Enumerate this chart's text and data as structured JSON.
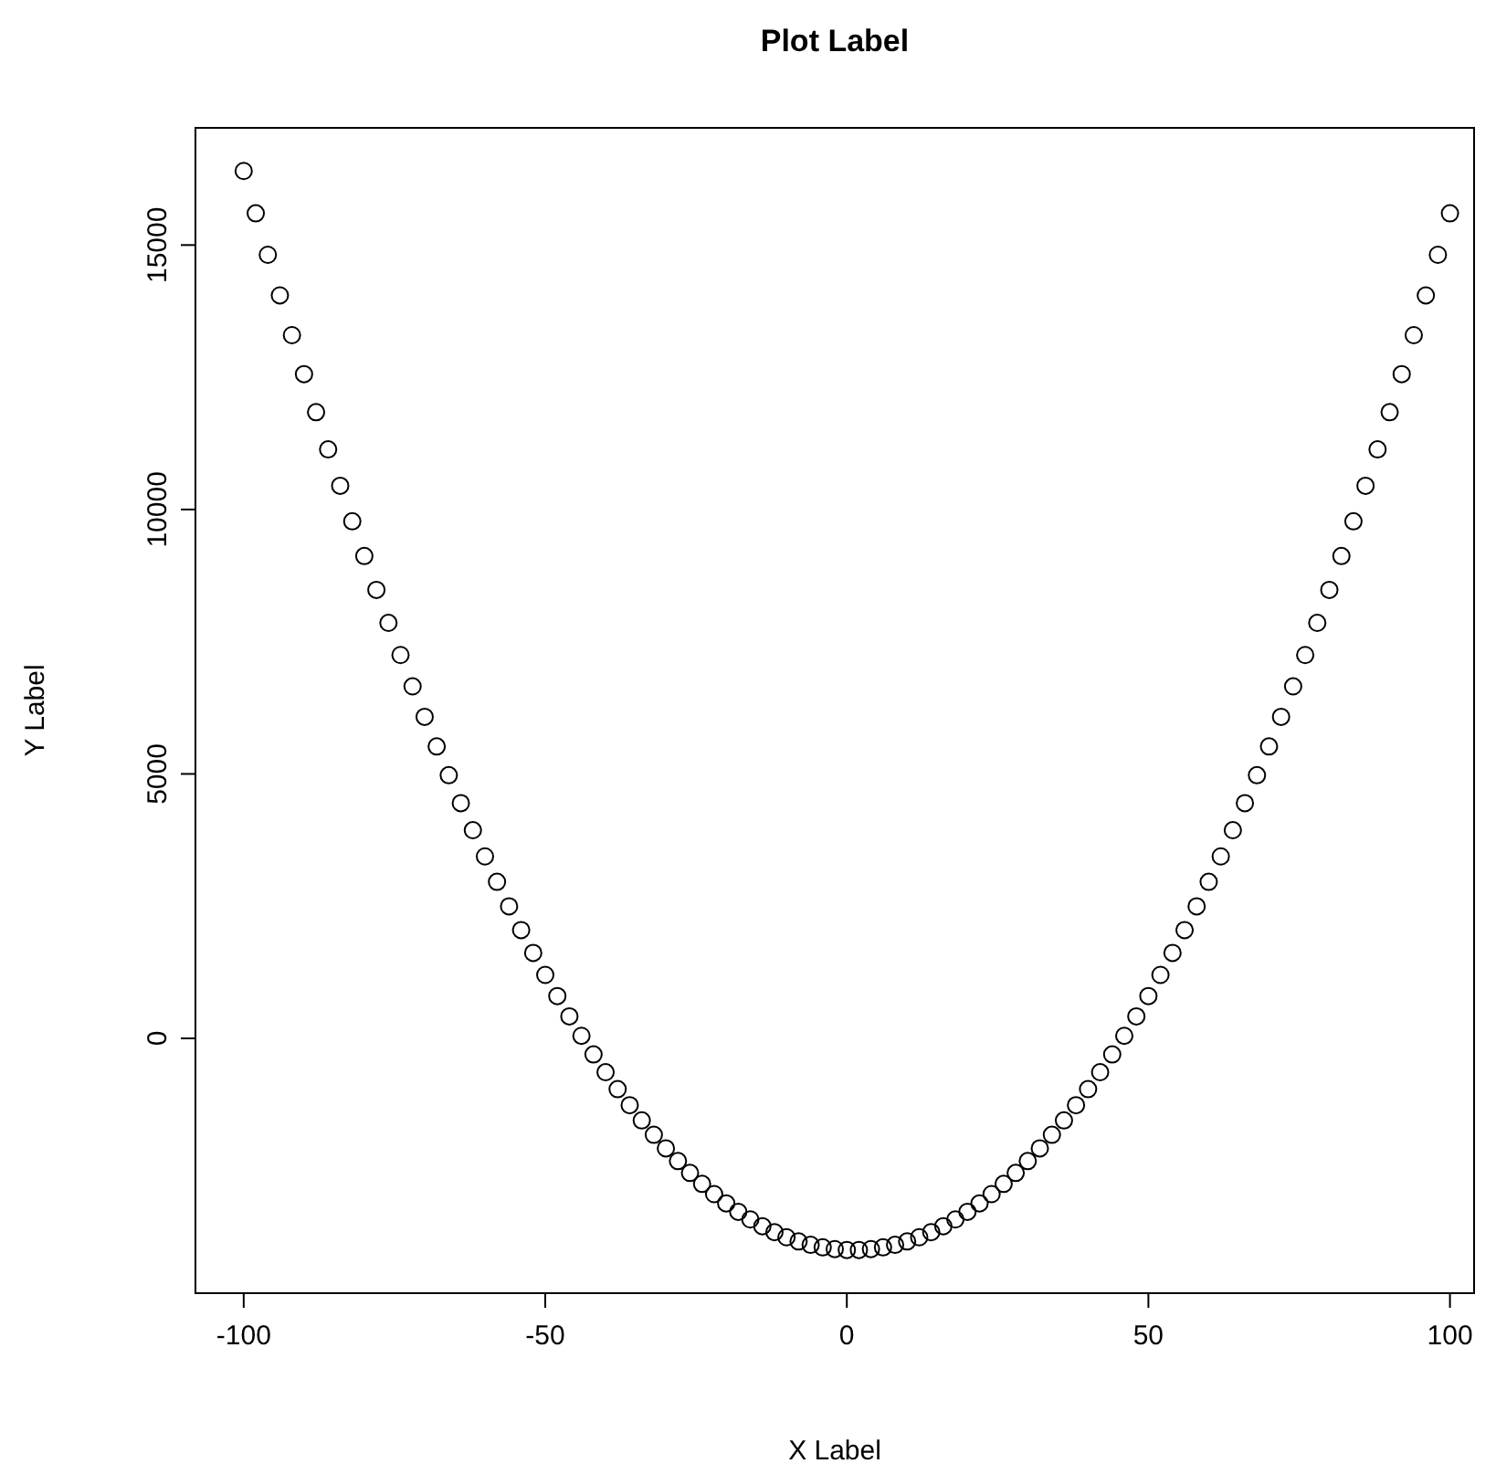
{
  "chart_data": {
    "type": "scatter",
    "title": "Plot Label",
    "xlabel": "X Label",
    "ylabel": "Y Label",
    "marker": "circle",
    "color": "#000000",
    "x": [
      -100,
      -98,
      -96,
      -94,
      -92,
      -90,
      -88,
      -86,
      -84,
      -82,
      -80,
      -78,
      -76,
      -74,
      -72,
      -70,
      -68,
      -66,
      -64,
      -62,
      -60,
      -58,
      -56,
      -54,
      -52,
      -50,
      -48,
      -46,
      -44,
      -42,
      -40,
      -38,
      -36,
      -34,
      -32,
      -30,
      -28,
      -26,
      -24,
      -22,
      -20,
      -18,
      -16,
      -14,
      -12,
      -10,
      -8,
      -6,
      -4,
      -2,
      0,
      2,
      4,
      6,
      8,
      10,
      12,
      14,
      16,
      18,
      20,
      22,
      24,
      26,
      28,
      30,
      32,
      34,
      36,
      38,
      40,
      42,
      44,
      46,
      48,
      50,
      52,
      54,
      56,
      58,
      60,
      62,
      64,
      66,
      68,
      70,
      72,
      74,
      76,
      78,
      80,
      82,
      84,
      86,
      88,
      90,
      92,
      94,
      96,
      98,
      100
    ],
    "values": [
      16400,
      15600,
      14816,
      14048,
      13296,
      12560,
      11840,
      11136,
      10448,
      9776,
      9120,
      8480,
      7856,
      7248,
      6656,
      6080,
      5520,
      4976,
      4448,
      3936,
      3440,
      2960,
      2496,
      2048,
      1616,
      1200,
      800,
      416,
      48,
      -304,
      -640,
      -960,
      -1264,
      -1552,
      -1824,
      -2080,
      -2320,
      -2544,
      -2752,
      -2944,
      -3120,
      -3280,
      -3424,
      -3552,
      -3664,
      -3760,
      -3840,
      -3904,
      -3952,
      -3984,
      -4000,
      -4000,
      -3984,
      -3952,
      -3904,
      -3840,
      -3760,
      -3664,
      -3552,
      -3424,
      -3280,
      -3120,
      -2944,
      -2752,
      -2544,
      -2320,
      -2080,
      -1824,
      -1552,
      -1264,
      -960,
      -640,
      -304,
      48,
      416,
      800,
      1200,
      1616,
      2048,
      2496,
      2960,
      3440,
      3936,
      4448,
      4976,
      5520,
      6080,
      6656,
      7248,
      7856,
      8480,
      9120,
      9776,
      10448,
      11136,
      11840,
      12560,
      13296,
      14048,
      14816,
      15600
    ],
    "xlim": [
      -108,
      104
    ],
    "ylim": [
      -4818,
      17216
    ],
    "xticks": [
      -100,
      -50,
      0,
      50,
      100
    ],
    "yticks": [
      0,
      5000,
      10000,
      15000
    ]
  }
}
